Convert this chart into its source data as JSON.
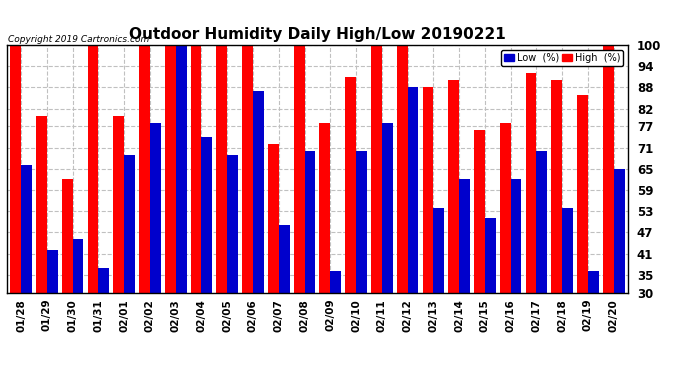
{
  "title": "Outdoor Humidity Daily High/Low 20190221",
  "copyright": "Copyright 2019 Cartronics.com",
  "dates": [
    "01/28",
    "01/29",
    "01/30",
    "01/31",
    "02/01",
    "02/02",
    "02/03",
    "02/04",
    "02/05",
    "02/06",
    "02/07",
    "02/08",
    "02/09",
    "02/10",
    "02/11",
    "02/12",
    "02/13",
    "02/14",
    "02/15",
    "02/16",
    "02/17",
    "02/18",
    "02/19",
    "02/20"
  ],
  "high": [
    100,
    80,
    62,
    100,
    80,
    100,
    100,
    100,
    100,
    100,
    72,
    100,
    78,
    91,
    100,
    100,
    88,
    90,
    76,
    78,
    92,
    90,
    86,
    100
  ],
  "low": [
    66,
    42,
    45,
    37,
    69,
    78,
    100,
    74,
    69,
    87,
    49,
    70,
    36,
    70,
    78,
    88,
    54,
    62,
    51,
    62,
    70,
    54,
    36,
    65
  ],
  "ylim_min": 30,
  "ylim_max": 100,
  "yticks": [
    30,
    35,
    41,
    47,
    53,
    59,
    65,
    71,
    77,
    82,
    88,
    94,
    100
  ],
  "high_color": "#ff0000",
  "low_color": "#0000cc",
  "bg_color": "#ffffff",
  "grid_color": "#c0c0c0",
  "title_fontsize": 11,
  "legend_low_label": "Low  (%)",
  "legend_high_label": "High  (%)"
}
